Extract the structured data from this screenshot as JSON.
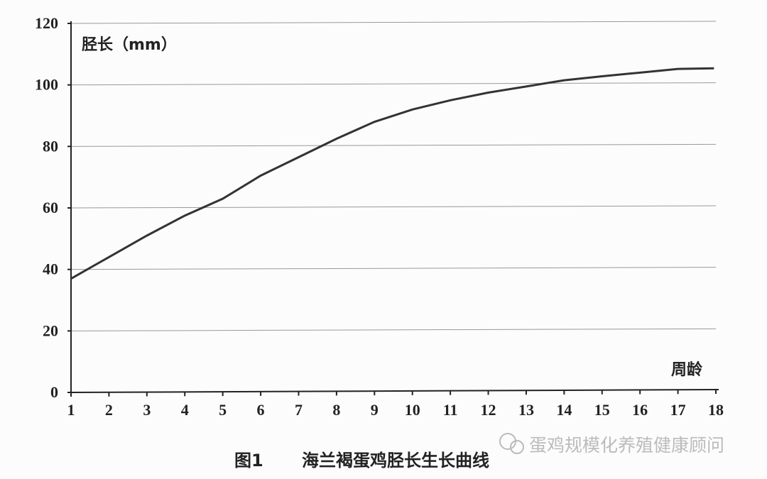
{
  "chart_data": {
    "type": "line",
    "title": "",
    "ylabel": "胫长（mm）",
    "xlabel": "周龄",
    "xlim": [
      1,
      18
    ],
    "ylim": [
      0,
      120
    ],
    "x_ticks": [
      "1",
      "2",
      "3",
      "4",
      "5",
      "6",
      "7",
      "8",
      "9",
      "10",
      "11",
      "12",
      "13",
      "14",
      "15",
      "16",
      "17",
      "18"
    ],
    "y_ticks": [
      "0",
      "20",
      "40",
      "60",
      "80",
      "100",
      "120"
    ],
    "grid": "horizontal",
    "series": [
      {
        "x": [
          1,
          2,
          3,
          4,
          5,
          6,
          7,
          8,
          9,
          10,
          11,
          12,
          13,
          14,
          15,
          16,
          17,
          18
        ],
        "values": [
          37,
          44,
          51,
          57.5,
          63,
          70.5,
          76.5,
          82.5,
          88,
          92,
          95,
          97.5,
          99.5,
          101.5,
          102.8,
          104,
          105.2,
          105.4
        ],
        "color": "#333333"
      }
    ]
  },
  "caption": {
    "figure": "图1",
    "text": "海兰褐蛋鸡胫长生长曲线"
  },
  "watermark": {
    "icon": "wechat-icon",
    "text": "蛋鸡规模化养殖健康顾问"
  }
}
